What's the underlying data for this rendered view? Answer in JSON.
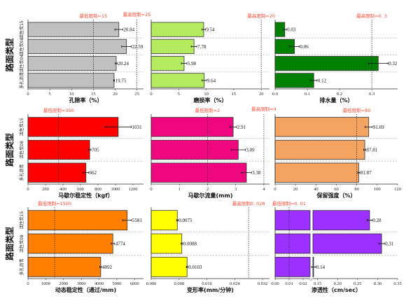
{
  "y_axis_label": "路面类型",
  "chart_data": [
    {
      "type": "bar",
      "orientation": "horizontal",
      "xlabel": "孔隙率（%）",
      "xlim": [
        0,
        26.5
      ],
      "xticks": [
        "0",
        "5",
        "10",
        "15",
        "20",
        "25"
      ],
      "tick_values": [
        0,
        5,
        10,
        15,
        20,
        25
      ],
      "categories": [
        "活性炭15",
        "活性炭08",
        "活性炭04",
        "多孔沥青"
      ],
      "values": [
        20.84,
        22.59,
        20.24,
        19.75
      ],
      "value_labels": [
        "20.84",
        "22.59",
        "20.24",
        "19.75"
      ],
      "errors": [
        0.9,
        1.1,
        0.2,
        0.1
      ],
      "color": "#c0c0c0",
      "limits": [
        {
          "label": "最低限制=15",
          "value": 15
        },
        {
          "label": "最高限制=25",
          "value": 25
        }
      ]
    },
    {
      "type": "bar",
      "orientation": "horizontal",
      "xlabel": "磨损率（%）",
      "xlim": [
        0,
        21.5
      ],
      "xticks": [
        "0",
        "5",
        "10",
        "15",
        "20"
      ],
      "tick_values": [
        0,
        5,
        10,
        15,
        20
      ],
      "categories": [
        "活性炭15",
        "活性炭08",
        "活性炭04",
        "多孔沥青"
      ],
      "values": [
        9.54,
        7.78,
        5.98,
        9.64
      ],
      "value_labels": [
        "9.54",
        "7.78",
        "5.98",
        "9.64"
      ],
      "errors": [
        0.3,
        0.5,
        0.5,
        0.4
      ],
      "color": "#b5ec5f",
      "limits": [
        {
          "label": "最高限制=20",
          "value": 20
        }
      ]
    },
    {
      "type": "bar",
      "orientation": "horizontal",
      "xlabel": "排水量（%）",
      "xlim": [
        0,
        0.38
      ],
      "xticks": [
        "0.0",
        "0.1",
        "0.2",
        "0.3"
      ],
      "tick_values": [
        0,
        0.1,
        0.2,
        0.3
      ],
      "categories": [
        "活性炭15",
        "活性炭08",
        "活性炭04",
        "多孔沥青"
      ],
      "values": [
        0.03,
        0.06,
        0.32,
        0.12
      ],
      "value_labels": [
        "0.03",
        "0.06",
        "0.32",
        "0.12"
      ],
      "errors": [
        0.005,
        0.015,
        0.03,
        0.01
      ],
      "color": "#008000",
      "limits": [
        {
          "label": "最高限制=0. 3",
          "value": 0.3
        }
      ]
    },
    {
      "type": "bar",
      "orientation": "horizontal",
      "xlabel": "马歇尔稳定性（kgf）",
      "xlim": [
        0,
        1320
      ],
      "xticks": [
        "0",
        "200",
        "400",
        "600",
        "800",
        "1000",
        "1200"
      ],
      "tick_values": [
        0,
        200,
        400,
        600,
        800,
        1000,
        1200
      ],
      "categories": [
        "活性炭15",
        "活性炭08",
        "多孔沥青"
      ],
      "values": [
        1031,
        705,
        662
      ],
      "value_labels": [
        "1031",
        "705",
        "662"
      ],
      "errors": [
        150,
        15,
        30
      ],
      "color": "#ff0000",
      "limits": [
        {
          "label": "最低限制=350",
          "value": 350
        }
      ]
    },
    {
      "type": "bar",
      "orientation": "horizontal",
      "xlabel": "马歇尔流量(mm)",
      "xlim": [
        0,
        4.2
      ],
      "xticks": [
        "0",
        "1",
        "2",
        "3",
        "4"
      ],
      "tick_values": [
        0,
        1,
        2,
        3,
        4
      ],
      "categories": [
        "活性炭15",
        "活性炭08",
        "多孔沥青"
      ],
      "values": [
        2.91,
        3.09,
        3.38
      ],
      "value_labels": [
        "2.91",
        "3.09",
        "3.38"
      ],
      "errors": [
        0.12,
        0.25,
        0.18
      ],
      "color": "#f0067f",
      "limits": [
        {
          "label": "最低限制=2",
          "value": 2
        },
        {
          "label": "最高限制=4",
          "value": 4
        }
      ]
    },
    {
      "type": "bar",
      "orientation": "horizontal",
      "xlabel": "保留强度（%）",
      "xlim": [
        0,
        120
      ],
      "xticks": [
        "0",
        "20",
        "40",
        "60",
        "80",
        "100",
        "120"
      ],
      "tick_values": [
        0,
        20,
        40,
        60,
        80,
        100,
        120
      ],
      "categories": [
        "活性炭15",
        "活性炭08",
        "多孔沥青"
      ],
      "values": [
        91.69,
        87.81,
        81.87
      ],
      "value_labels": [
        "91.69",
        "87.81",
        "81.87"
      ],
      "errors": [
        3.5,
        1,
        1
      ],
      "color": "#f4a460",
      "limits": [
        {
          "label": "最低限制=80",
          "value": 80
        }
      ]
    },
    {
      "type": "bar",
      "orientation": "horizontal",
      "xlabel": "动态稳定性（通过/mm)",
      "xlim": [
        0,
        6500
      ],
      "xticks": [
        "0",
        "1000",
        "2000",
        "3000",
        "4000",
        "5000",
        "6000"
      ],
      "tick_values": [
        0,
        1000,
        2000,
        3000,
        4000,
        5000,
        6000
      ],
      "categories": [
        "活性炭15",
        "活性炭08",
        "多孔沥青"
      ],
      "values": [
        5581,
        4774,
        4092
      ],
      "value_labels": [
        "5581",
        "4774",
        "4092"
      ],
      "errors": [
        250,
        100,
        50
      ],
      "color": "#ff8000",
      "limits": [
        {
          "label": "最低限制=1500",
          "value": 1500
        }
      ]
    },
    {
      "type": "bar",
      "orientation": "horizontal",
      "xlabel": "变形率(mm/分钟)",
      "xlim": [
        0,
        0.034
      ],
      "xticks": [
        "0.000",
        "0.008",
        "0.016",
        "0.024",
        "0.032"
      ],
      "tick_values": [
        0,
        0.008,
        0.016,
        0.024,
        0.032
      ],
      "categories": [
        "活性炭15",
        "活性炭08",
        "多孔沥青"
      ],
      "values": [
        0.0075,
        0.0088,
        0.0103
      ],
      "value_labels": [
        "0.0075",
        "0.0088",
        "0.0103"
      ],
      "errors": [
        0.0002,
        0.0002,
        0.0002
      ],
      "color": "#ffff00",
      "limits": [
        {
          "label": "最高限制0. 028",
          "value": 0.028
        }
      ]
    },
    {
      "type": "bar",
      "orientation": "horizontal",
      "xlabel": "渗透性（cm/sec）",
      "xlim": [
        0,
        0.35
      ],
      "axis_break": [
        0.025,
        0.14
      ],
      "xticks": [
        "0.00",
        "0.01",
        "0.02",
        "0.15",
        "0.20",
        "0.25",
        "0.30",
        "0.35"
      ],
      "tick_values": [
        0,
        0.01,
        0.02,
        0.15,
        0.2,
        0.25,
        0.3,
        0.35
      ],
      "categories": [
        "活性炭15",
        "活性炭08",
        "多孔沥青"
      ],
      "values": [
        0.28,
        0.31,
        0.14
      ],
      "value_labels": [
        "0.28",
        "0.31",
        "0.14"
      ],
      "errors": [
        0.006,
        0.007,
        0.005
      ],
      "color": "#9b30ff",
      "limits": [
        {
          "label": "最低限制=0. 01",
          "value": 0.01
        }
      ]
    }
  ]
}
